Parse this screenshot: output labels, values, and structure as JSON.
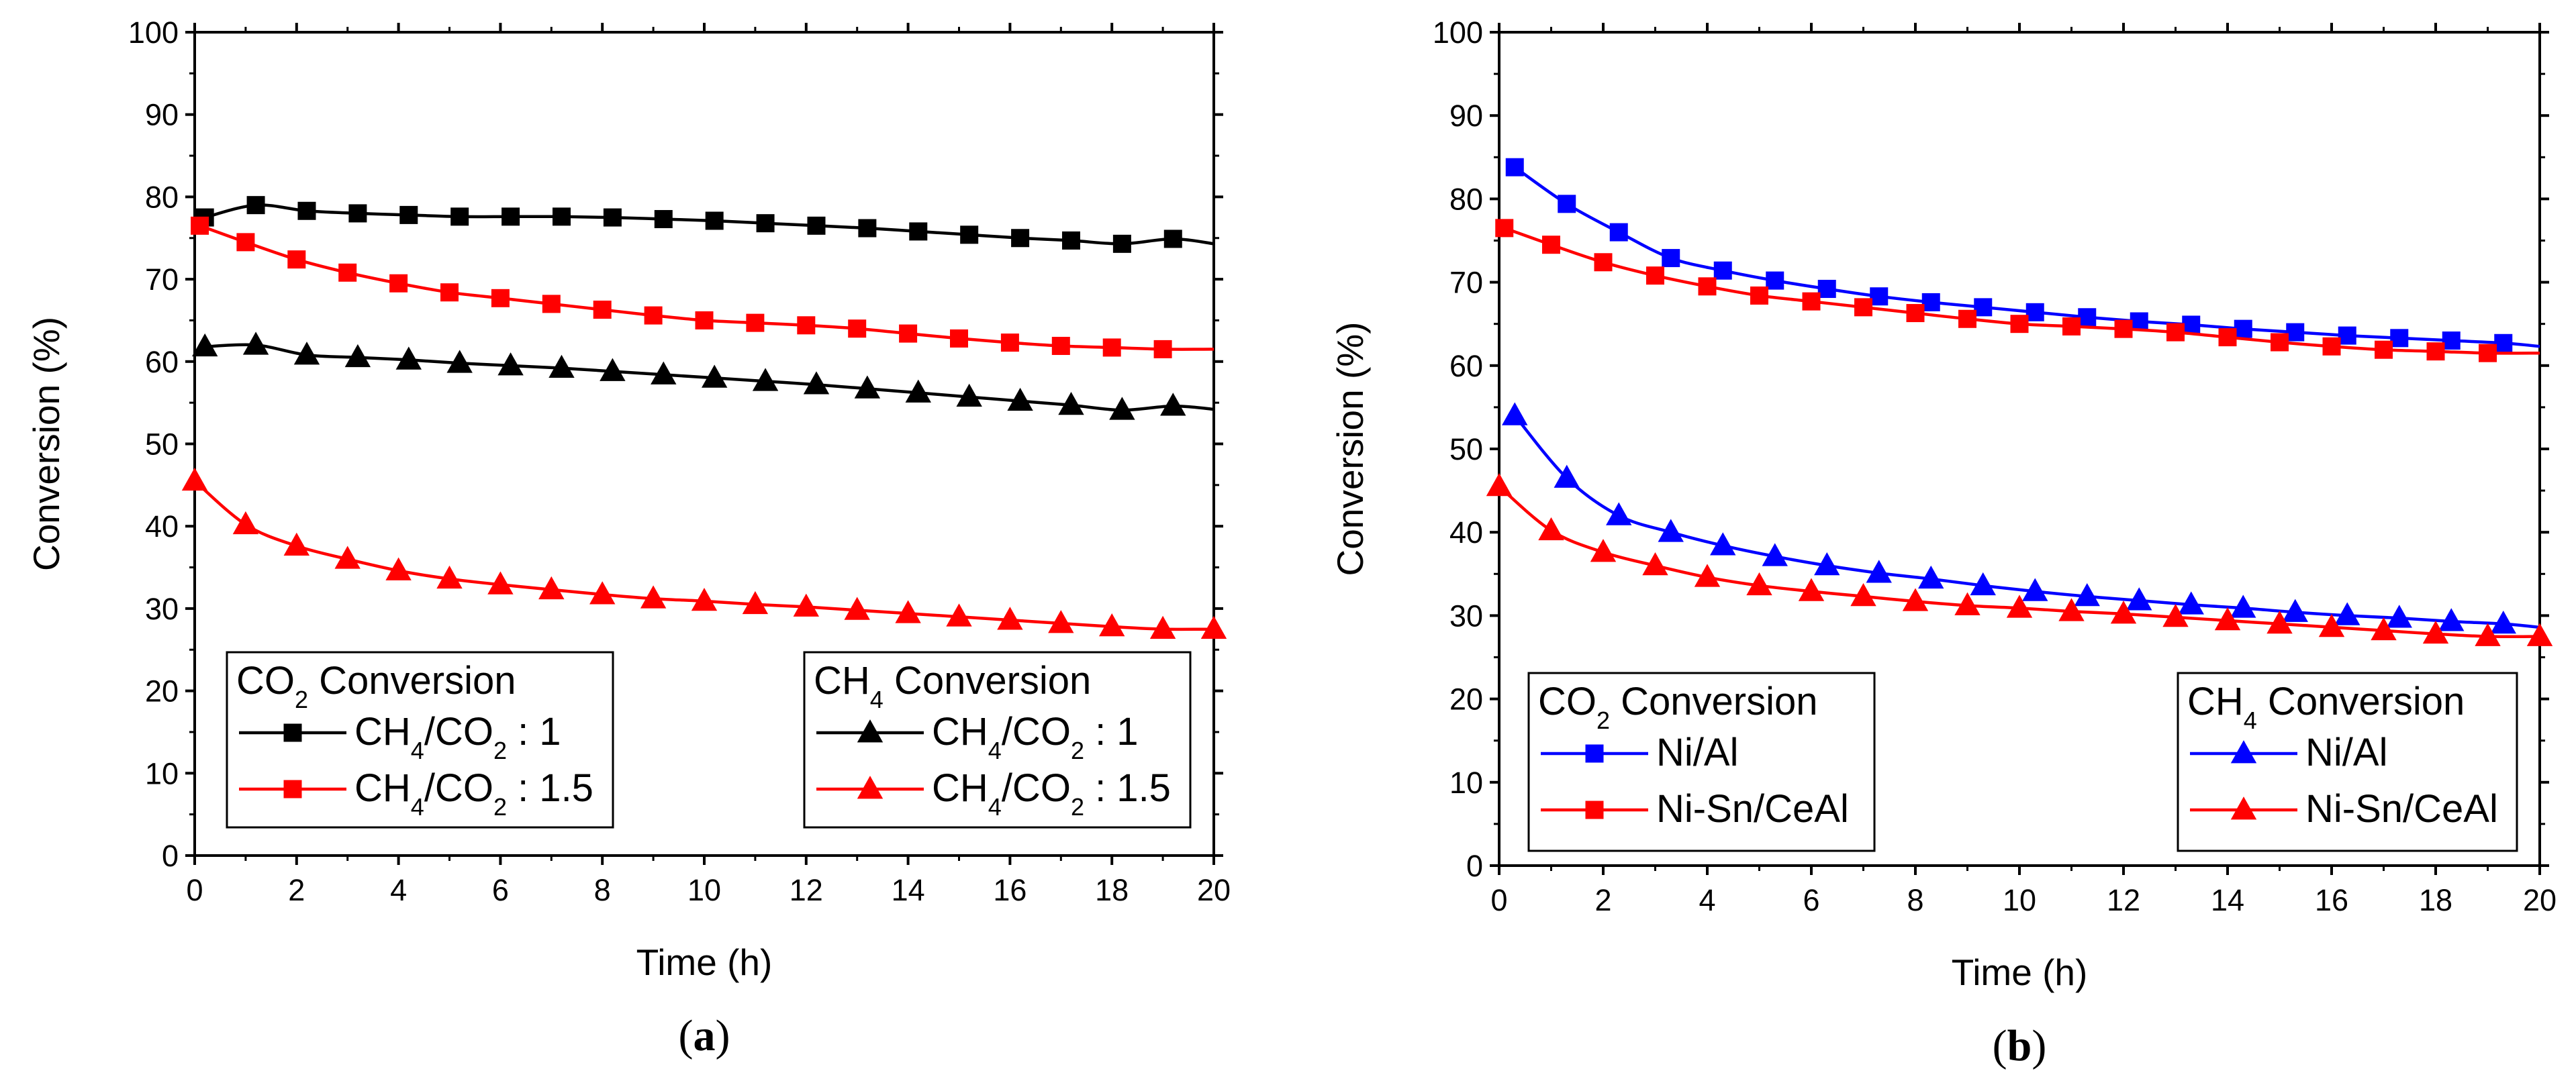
{
  "colors": {
    "black": "#000000",
    "red": "#ff0000",
    "blue": "#0000ff"
  },
  "chart_data": [
    {
      "id": "a",
      "type": "line",
      "panel_label": "a",
      "xlabel": "Time (h)",
      "ylabel": "Conversion (%)",
      "xlim": [
        0,
        20
      ],
      "ylim": [
        0,
        100
      ],
      "xticks": [
        0,
        2,
        4,
        6,
        8,
        10,
        12,
        14,
        16,
        18,
        20
      ],
      "yticks": [
        0,
        10,
        20,
        30,
        40,
        50,
        60,
        70,
        80,
        90,
        100
      ],
      "legend_groups": [
        {
          "title": "CO",
          "title_sub": "2",
          "title_rest": " Conversion",
          "position": "bottom-left"
        },
        {
          "title": "CH",
          "title_sub": "4",
          "title_rest": " Conversion",
          "position": "bottom-right"
        }
      ],
      "series": [
        {
          "name": "CH4/CO2 : 1",
          "group": 0,
          "marker": "square",
          "color": "#000000",
          "labels": [
            "CH",
            "4",
            "/CO",
            "2",
            " : 1"
          ],
          "x": [
            0.2,
            1.2,
            2.2,
            3.2,
            4.2,
            5.2,
            6.2,
            7.2,
            8.2,
            9.2,
            10.2,
            11.2,
            12.2,
            13.2,
            14.2,
            15.2,
            16.2,
            17.2,
            18.2,
            19.2
          ],
          "y": [
            77.5,
            79.0,
            78.3,
            78.0,
            77.8,
            77.6,
            77.6,
            77.6,
            77.5,
            77.3,
            77.1,
            76.8,
            76.5,
            76.2,
            75.8,
            75.4,
            75.0,
            74.7,
            74.3,
            74.9
          ],
          "line_end": [
            20,
            74.3
          ]
        },
        {
          "name": "CH4/CO2 : 1.5",
          "group": 0,
          "marker": "square",
          "color": "#ff0000",
          "labels": [
            "CH",
            "4",
            "/CO",
            "2",
            " : 1.5"
          ],
          "x": [
            0.1,
            1.0,
            2.0,
            3.0,
            4.0,
            5.0,
            6.0,
            7.0,
            8.0,
            9.0,
            10.0,
            11.0,
            12.0,
            13.0,
            14.0,
            15.0,
            16.0,
            17.0,
            18.0,
            19.0
          ],
          "y": [
            76.5,
            74.5,
            72.4,
            70.8,
            69.5,
            68.4,
            67.7,
            67.0,
            66.3,
            65.6,
            65.0,
            64.7,
            64.4,
            64.0,
            63.4,
            62.8,
            62.3,
            61.9,
            61.7,
            61.5
          ],
          "line_end": [
            20,
            61.5
          ]
        },
        {
          "name": "CH4/CO2 : 1",
          "group": 1,
          "marker": "triangle",
          "color": "#000000",
          "labels": [
            "CH",
            "4",
            "/CO",
            "2",
            " : 1"
          ],
          "x": [
            0.2,
            1.2,
            2.2,
            3.2,
            4.2,
            5.2,
            6.2,
            7.2,
            8.2,
            9.2,
            10.2,
            11.2,
            12.2,
            13.2,
            14.2,
            15.2,
            16.2,
            17.2,
            18.2,
            19.2
          ],
          "y": [
            61.8,
            62.0,
            60.8,
            60.5,
            60.2,
            59.8,
            59.5,
            59.2,
            58.8,
            58.4,
            58.0,
            57.6,
            57.2,
            56.7,
            56.2,
            55.7,
            55.2,
            54.7,
            54.1,
            54.6
          ],
          "line_end": [
            20,
            54.2
          ]
        },
        {
          "name": "CH4/CO2 : 1.5",
          "group": 1,
          "marker": "triangle",
          "color": "#ff0000",
          "labels": [
            "CH",
            "4",
            "/CO",
            "2",
            " : 1.5"
          ],
          "x": [
            0,
            1.0,
            2.0,
            3.0,
            4.0,
            5.0,
            6.0,
            7.0,
            8.0,
            9.0,
            10.0,
            11.0,
            12.0,
            13.0,
            14.0,
            15.0,
            16.0,
            17.0,
            18.0,
            19.0,
            20.0
          ],
          "y": [
            45.5,
            40.2,
            37.6,
            36.0,
            34.6,
            33.6,
            32.9,
            32.3,
            31.7,
            31.2,
            30.9,
            30.5,
            30.2,
            29.8,
            29.4,
            29.0,
            28.6,
            28.2,
            27.8,
            27.5,
            27.5
          ],
          "line_end": [
            20,
            27.5
          ]
        }
      ]
    },
    {
      "id": "b",
      "type": "line",
      "panel_label": "b",
      "xlabel": "Time (h)",
      "ylabel": "Conversion (%)",
      "xlim": [
        0,
        20
      ],
      "ylim": [
        0,
        100
      ],
      "xticks": [
        0,
        2,
        4,
        6,
        8,
        10,
        12,
        14,
        16,
        18,
        20
      ],
      "yticks": [
        0,
        10,
        20,
        30,
        40,
        50,
        60,
        70,
        80,
        90,
        100
      ],
      "legend_groups": [
        {
          "title": "CO",
          "title_sub": "2",
          "title_rest": " Conversion",
          "position": "bottom-left"
        },
        {
          "title": "CH",
          "title_sub": "4",
          "title_rest": " Conversion",
          "position": "bottom-right"
        }
      ],
      "series": [
        {
          "name": "Ni/Al",
          "group": 0,
          "marker": "square",
          "color": "#0000ff",
          "labels": [
            "Ni/Al"
          ],
          "x": [
            0.3,
            1.3,
            2.3,
            3.3,
            4.3,
            5.3,
            6.3,
            7.3,
            8.3,
            9.3,
            10.3,
            11.3,
            12.3,
            13.3,
            14.3,
            15.3,
            16.3,
            17.3,
            18.3,
            19.3
          ],
          "y": [
            83.8,
            79.4,
            76.0,
            72.9,
            71.4,
            70.2,
            69.2,
            68.3,
            67.6,
            67.0,
            66.4,
            65.8,
            65.3,
            64.9,
            64.4,
            64.0,
            63.6,
            63.3,
            63.0,
            62.7
          ],
          "line_end": [
            20,
            62.3
          ]
        },
        {
          "name": "Ni-Sn/CeAl",
          "group": 0,
          "marker": "square",
          "color": "#ff0000",
          "labels": [
            "Ni-Sn/CeAl"
          ],
          "x": [
            0.1,
            1.0,
            2.0,
            3.0,
            4.0,
            5.0,
            6.0,
            7.0,
            8.0,
            9.0,
            10.0,
            11.0,
            12.0,
            13.0,
            14.0,
            15.0,
            16.0,
            17.0,
            18.0,
            19.0
          ],
          "y": [
            76.5,
            74.5,
            72.4,
            70.8,
            69.5,
            68.4,
            67.7,
            67.0,
            66.3,
            65.6,
            65.0,
            64.7,
            64.4,
            64.0,
            63.4,
            62.8,
            62.3,
            61.9,
            61.7,
            61.5
          ],
          "line_end": [
            20,
            61.5
          ]
        },
        {
          "name": "Ni/Al",
          "group": 1,
          "marker": "triangle",
          "color": "#0000ff",
          "labels": [
            "Ni/Al"
          ],
          "x": [
            0.3,
            1.3,
            2.3,
            3.3,
            4.3,
            5.3,
            6.3,
            7.3,
            8.3,
            9.3,
            10.3,
            11.3,
            12.3,
            13.3,
            14.3,
            15.3,
            16.3,
            17.3,
            18.3,
            19.3
          ],
          "y": [
            54.0,
            46.5,
            42.0,
            40.0,
            38.4,
            37.1,
            36.0,
            35.1,
            34.4,
            33.6,
            32.9,
            32.3,
            31.8,
            31.3,
            30.9,
            30.4,
            30.0,
            29.7,
            29.3,
            29.0
          ],
          "line_end": [
            20,
            28.6
          ]
        },
        {
          "name": "Ni-Sn/CeAl",
          "group": 1,
          "marker": "triangle",
          "color": "#ff0000",
          "labels": [
            "Ni-Sn/CeAl"
          ],
          "x": [
            0,
            1.0,
            2.0,
            3.0,
            4.0,
            5.0,
            6.0,
            7.0,
            8.0,
            9.0,
            10.0,
            11.0,
            12.0,
            13.0,
            14.0,
            15.0,
            16.0,
            17.0,
            18.0,
            19.0,
            20.0
          ],
          "y": [
            45.5,
            40.2,
            37.6,
            36.0,
            34.6,
            33.6,
            32.9,
            32.3,
            31.7,
            31.2,
            30.9,
            30.5,
            30.2,
            29.8,
            29.4,
            29.0,
            28.6,
            28.2,
            27.8,
            27.5,
            27.5
          ],
          "line_end": [
            20,
            27.5
          ]
        }
      ]
    }
  ]
}
